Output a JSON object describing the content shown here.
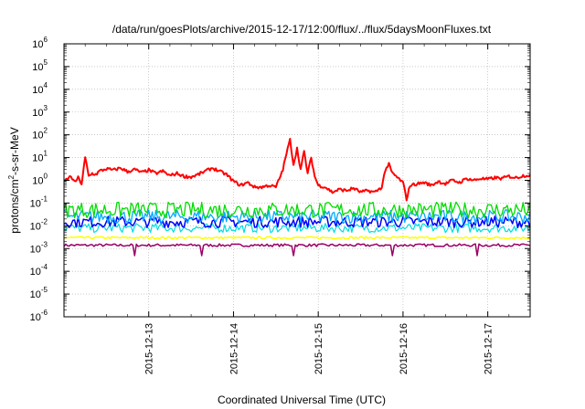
{
  "chart_data": {
    "type": "line",
    "title": "/data/run/goesPlots/archive/2015-12-17/12:00/flux/../flux/5daysMoonFluxes.txt",
    "xlabel": "Coordinated Universal Time (UTC)",
    "ylabel": {
      "base": "protons/cm",
      "sup": "2",
      "rest": "-s-sr-MeV"
    },
    "y_scale": "log",
    "ylim": [
      1e-06,
      1000000.0
    ],
    "y_ticks": [
      {
        "value": 1e-06,
        "base": "10",
        "exp": "-6"
      },
      {
        "value": 1e-05,
        "base": "10",
        "exp": "-5"
      },
      {
        "value": 0.0001,
        "base": "10",
        "exp": "-4"
      },
      {
        "value": 0.001,
        "base": "10",
        "exp": "-3"
      },
      {
        "value": 0.01,
        "base": "10",
        "exp": "-2"
      },
      {
        "value": 0.1,
        "base": "10",
        "exp": "-1"
      },
      {
        "value": 1.0,
        "base": "10",
        "exp": "0"
      },
      {
        "value": 10.0,
        "base": "10",
        "exp": "1"
      },
      {
        "value": 100.0,
        "base": "10",
        "exp": "2"
      },
      {
        "value": 1000.0,
        "base": "10",
        "exp": "3"
      },
      {
        "value": 10000.0,
        "base": "10",
        "exp": "4"
      },
      {
        "value": 100000.0,
        "base": "10",
        "exp": "5"
      },
      {
        "value": 1000000.0,
        "base": "10",
        "exp": "6"
      }
    ],
    "xlim": [
      "2015-12-12 00:00",
      "2015-12-17 12:00"
    ],
    "x_ticks": [
      "2015-12-13",
      "2015-12-14",
      "2015-12-15",
      "2015-12-16",
      "2015-12-17"
    ],
    "grid": true,
    "legend": "none",
    "series": [
      {
        "color": "#ff0000",
        "width": 2,
        "x": [
          "2015-12-12 00:00",
          "2015-12-12 02:00",
          "2015-12-12 03:00",
          "2015-12-12 04:00",
          "2015-12-12 05:00",
          "2015-12-12 06:00",
          "2015-12-12 07:00",
          "2015-12-12 08:00",
          "2015-12-12 09:00",
          "2015-12-12 10:00",
          "2015-12-12 12:00",
          "2015-12-12 14:00",
          "2015-12-12 16:00",
          "2015-12-12 18:00",
          "2015-12-12 20:00",
          "2015-12-12 22:00",
          "2015-12-13 00:00",
          "2015-12-13 02:00",
          "2015-12-13 04:00",
          "2015-12-13 06:00",
          "2015-12-13 08:00",
          "2015-12-13 10:00",
          "2015-12-13 12:00",
          "2015-12-13 14:00",
          "2015-12-13 16:00",
          "2015-12-13 18:00",
          "2015-12-13 20:00",
          "2015-12-13 22:00",
          "2015-12-14 00:00",
          "2015-12-14 02:00",
          "2015-12-14 04:00",
          "2015-12-14 06:00",
          "2015-12-14 08:00",
          "2015-12-14 10:00",
          "2015-12-14 12:00",
          "2015-12-14 13:00",
          "2015-12-14 14:00",
          "2015-12-14 15:00",
          "2015-12-14 16:00",
          "2015-12-14 17:00",
          "2015-12-14 18:00",
          "2015-12-14 19:00",
          "2015-12-14 20:00",
          "2015-12-14 21:00",
          "2015-12-14 22:00",
          "2015-12-14 23:00",
          "2015-12-15 00:00",
          "2015-12-15 02:00",
          "2015-12-15 04:00",
          "2015-12-15 06:00",
          "2015-12-15 08:00",
          "2015-12-15 10:00",
          "2015-12-15 12:00",
          "2015-12-15 14:00",
          "2015-12-15 16:00",
          "2015-12-15 18:00",
          "2015-12-15 19:00",
          "2015-12-15 20:00",
          "2015-12-15 21:00",
          "2015-12-15 22:00",
          "2015-12-16 00:00",
          "2015-12-16 01:00",
          "2015-12-16 02:00",
          "2015-12-16 04:00",
          "2015-12-16 06:00",
          "2015-12-16 08:00",
          "2015-12-16 10:00",
          "2015-12-16 12:00",
          "2015-12-16 14:00",
          "2015-12-16 16:00",
          "2015-12-16 18:00",
          "2015-12-16 20:00",
          "2015-12-16 22:00",
          "2015-12-17 00:00",
          "2015-12-17 02:00",
          "2015-12-17 04:00",
          "2015-12-17 06:00",
          "2015-12-17 08:00",
          "2015-12-17 10:00",
          "2015-12-17 12:00"
        ],
        "y": [
          0.9,
          1.5,
          0.8,
          1.3,
          0.7,
          10,
          1.5,
          2.0,
          1.8,
          2.5,
          3.2,
          2.8,
          3.5,
          2.4,
          3.0,
          2.2,
          2.8,
          2.0,
          2.5,
          1.6,
          2.0,
          1.5,
          1.4,
          1.8,
          2.5,
          3.5,
          2.5,
          1.8,
          0.9,
          0.6,
          0.8,
          0.5,
          0.5,
          0.6,
          0.5,
          1.2,
          3,
          15,
          60,
          5,
          25,
          3,
          18,
          2,
          10,
          1.5,
          0.6,
          0.5,
          0.3,
          0.4,
          0.35,
          0.45,
          0.3,
          0.35,
          0.3,
          0.5,
          3,
          5,
          2,
          1.5,
          0.8,
          0.15,
          0.6,
          0.7,
          0.8,
          0.6,
          0.9,
          0.7,
          1.0,
          0.8,
          1.2,
          1.0,
          1.2,
          1.1,
          1.3,
          1.2,
          1.5,
          1.3,
          1.6,
          1.7
        ]
      },
      {
        "color": "#00dd00",
        "width": 1.3,
        "x": [
          "2015-12-12 00:00",
          "2015-12-17 12:00"
        ],
        "y": [
          0.05,
          0.05
        ],
        "noise": 0.7
      },
      {
        "color": "#00aaff",
        "width": 1.3,
        "x": [
          "2015-12-12 00:00",
          "2015-12-17 12:00"
        ],
        "y": [
          0.025,
          0.025
        ],
        "noise": 0.6
      },
      {
        "color": "#0000ff",
        "width": 1.5,
        "x": [
          "2015-12-12 00:00",
          "2015-12-17 12:00"
        ],
        "y": [
          0.015,
          0.015
        ],
        "noise": 0.5
      },
      {
        "color": "#00dddd",
        "width": 1.2,
        "x": [
          "2015-12-12 00:00",
          "2015-12-17 12:00"
        ],
        "y": [
          0.008,
          0.008
        ],
        "noise": 0.4
      },
      {
        "color": "#ffff00",
        "width": 1.5,
        "x": [
          "2015-12-12 00:00",
          "2015-12-17 12:00"
        ],
        "y": [
          0.003,
          0.003
        ],
        "noise": 0.1
      },
      {
        "color": "#990066",
        "width": 1.5,
        "x": [
          "2015-12-12 00:00",
          "2015-12-17 12:00"
        ],
        "y": [
          0.0014,
          0.0014
        ],
        "noise": 0.12,
        "dips": [
          "2015-12-12 20:00",
          "2015-12-13 15:00",
          "2015-12-14 17:00",
          "2015-12-15 21:00",
          "2015-12-16 21:00"
        ]
      }
    ]
  }
}
